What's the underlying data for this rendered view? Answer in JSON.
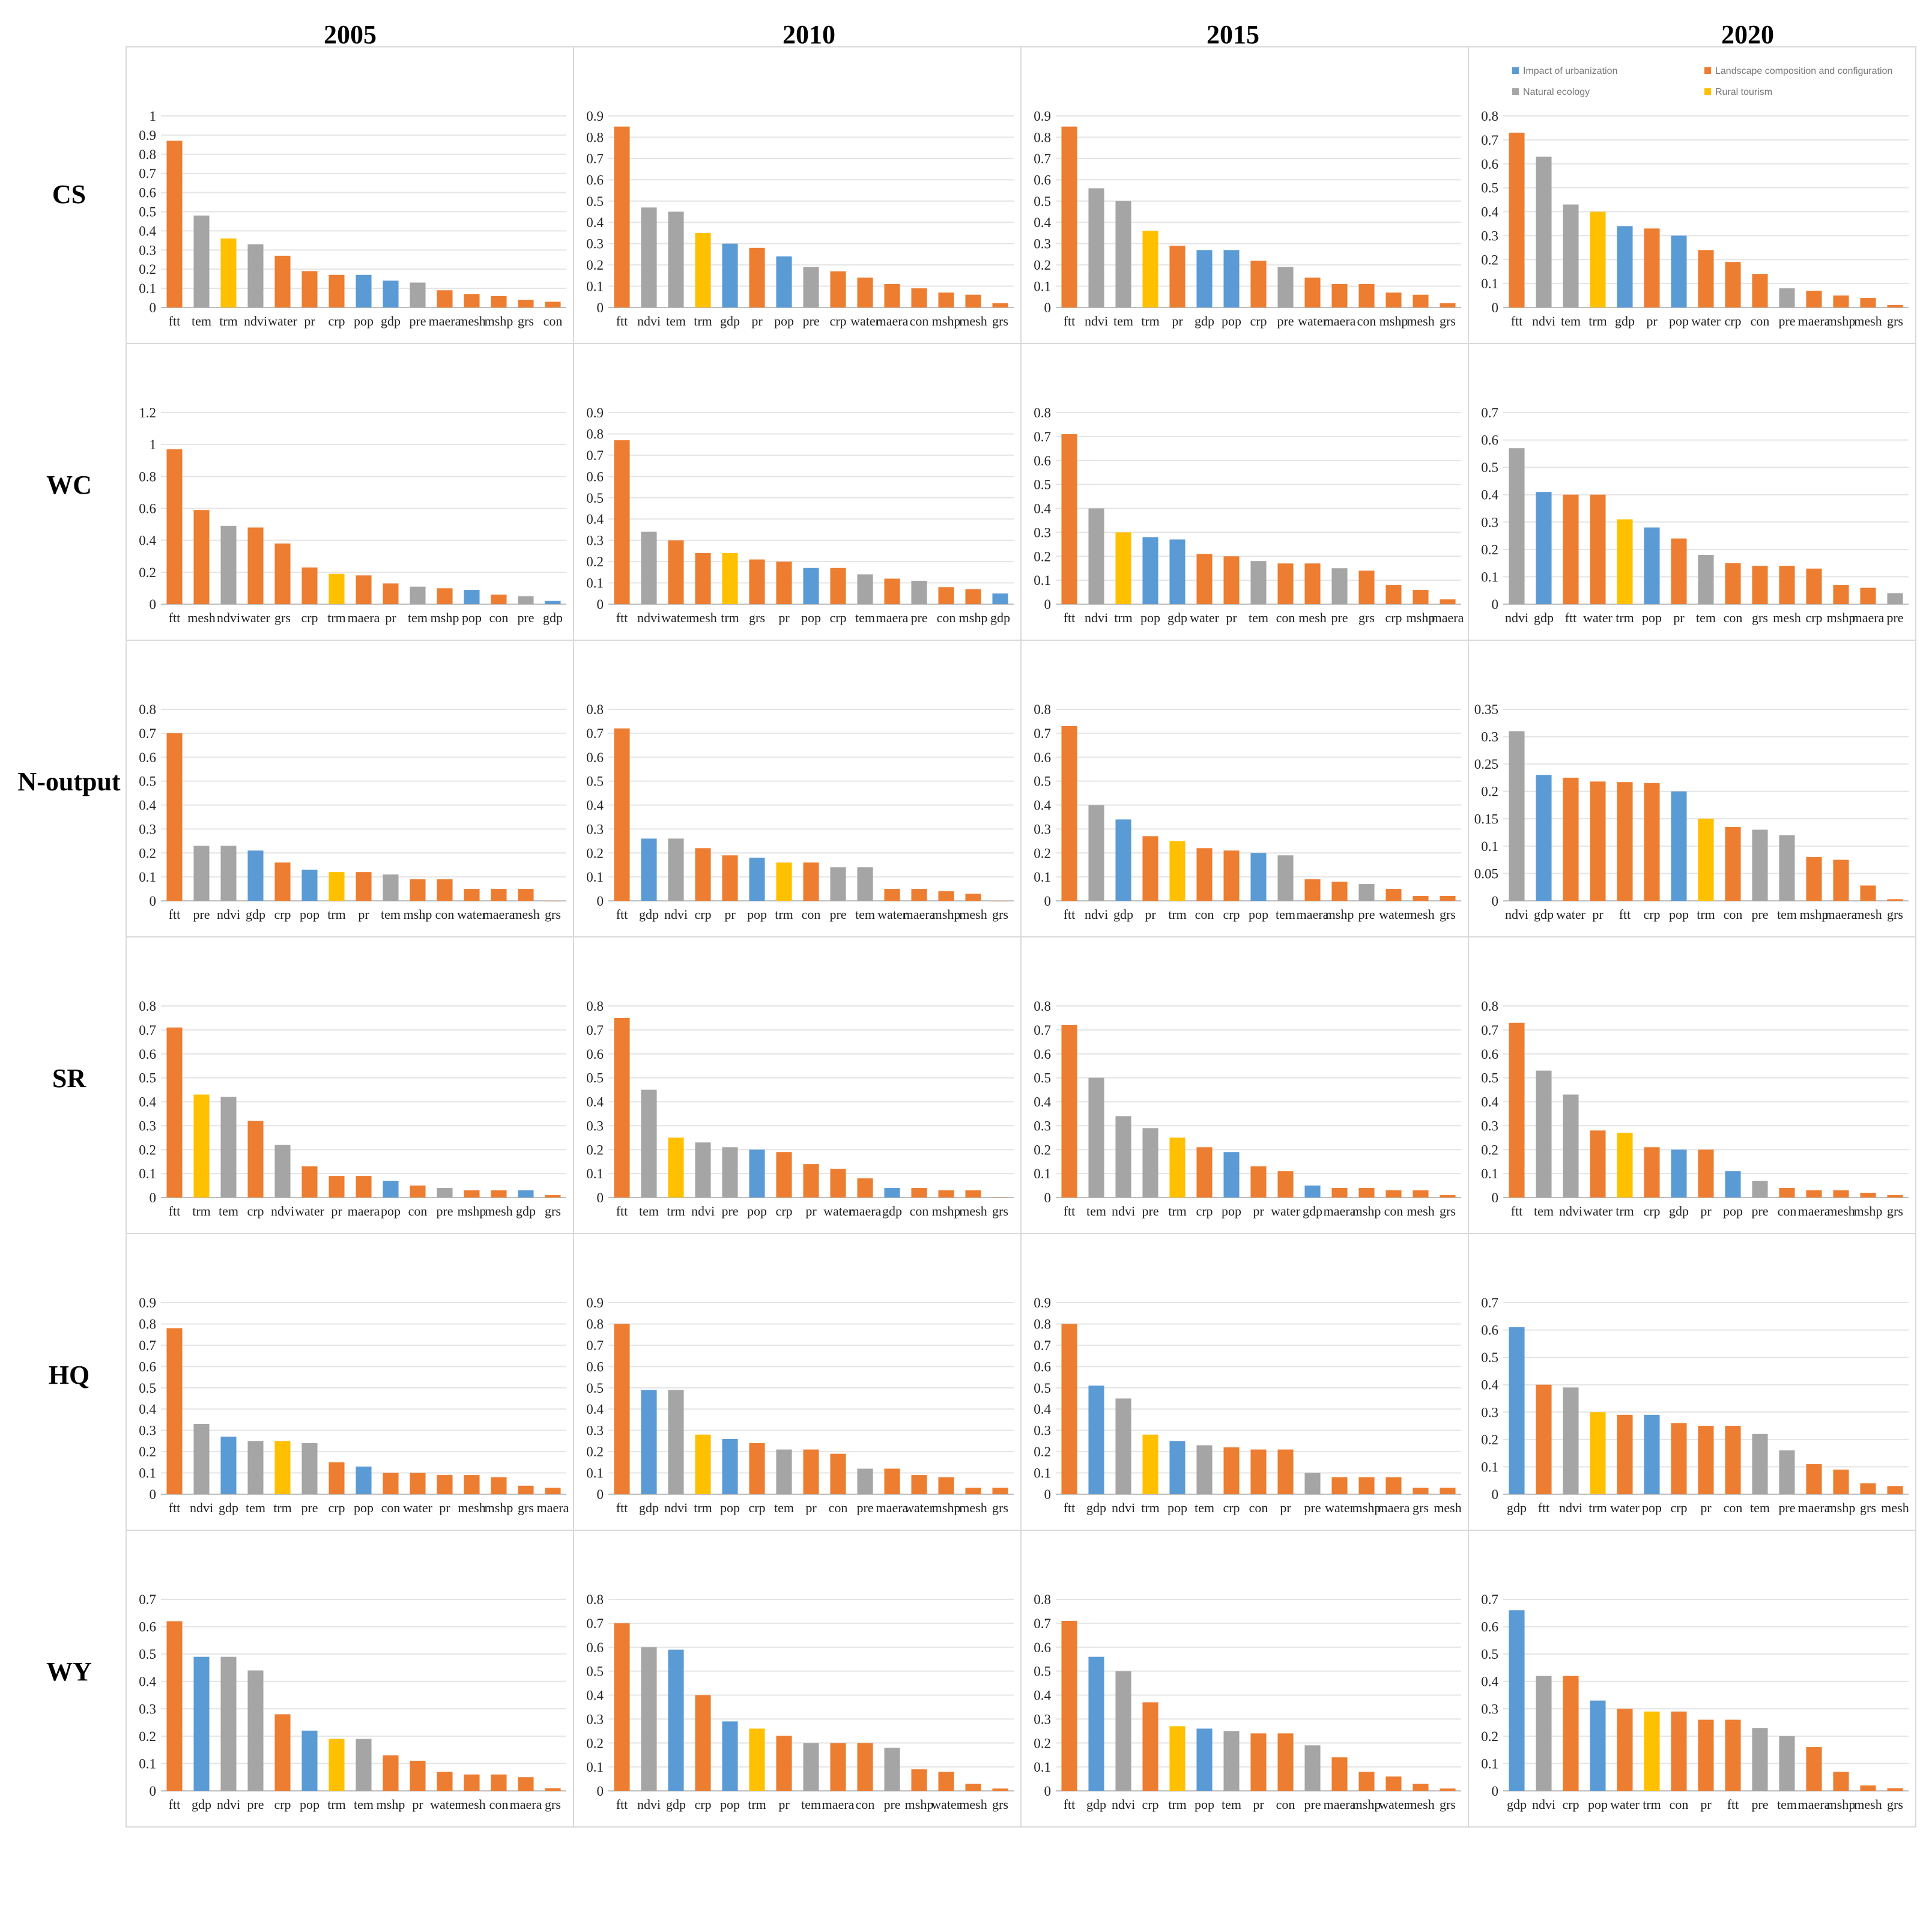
{
  "colors": {
    "Impact of urbanization": "#5b9bd5",
    "Landscape composition and configuration": "#ed7d31",
    "Natural ecology": "#a5a5a5",
    "Rural tourism": "#ffc000"
  },
  "variable_groups": {
    "ftt": "Landscape composition and configuration",
    "mesh": "Landscape composition and configuration",
    "water": "Landscape composition and configuration",
    "grs": "Landscape composition and configuration",
    "crp": "Landscape composition and configuration",
    "maera": "Landscape composition and configuration",
    "pr": "Landscape composition and configuration",
    "con": "Landscape composition and configuration",
    "mshp": "Landscape composition and configuration",
    "tem": "Natural ecology",
    "ndvi": "Natural ecology",
    "pre": "Natural ecology",
    "gdp": "Impact of urbanization",
    "pop": "Impact of urbanization",
    "trm": "Rural tourism"
  },
  "legend": {
    "entries": [
      "Impact of urbanization",
      "Landscape composition and configuration",
      "Natural ecology",
      "Rural tourism"
    ]
  },
  "columns": [
    "2005",
    "2010",
    "2015",
    "2020"
  ],
  "rows": [
    "CS",
    "WC",
    "N-output",
    "SR",
    "HQ",
    "WY"
  ],
  "chart_data": [
    {
      "type": "bar",
      "row": "CS",
      "year": "2005",
      "ylim": [
        0,
        1
      ],
      "yticks": [
        "0",
        "0.1",
        "0.2",
        "0.3",
        "0.4",
        "0.5",
        "0.6",
        "0.7",
        "0.8",
        "0.9",
        "1"
      ],
      "categories": [
        "ftt",
        "tem",
        "trm",
        "ndvi",
        "water",
        "pr",
        "crp",
        "pop",
        "gdp",
        "pre",
        "maera",
        "mesh",
        "mshp",
        "grs",
        "con"
      ],
      "values": [
        0.87,
        0.48,
        0.36,
        0.33,
        0.27,
        0.19,
        0.17,
        0.17,
        0.14,
        0.13,
        0.09,
        0.07,
        0.06,
        0.04,
        0.03
      ]
    },
    {
      "type": "bar",
      "row": "CS",
      "year": "2010",
      "ylim": [
        0,
        0.9
      ],
      "yticks": [
        "0",
        "0.1",
        "0.2",
        "0.3",
        "0.4",
        "0.5",
        "0.6",
        "0.7",
        "0.8",
        "0.9"
      ],
      "categories": [
        "ftt",
        "ndvi",
        "tem",
        "trm",
        "gdp",
        "pr",
        "pop",
        "pre",
        "crp",
        "water",
        "maera",
        "con",
        "mshp",
        "mesh",
        "grs"
      ],
      "values": [
        0.85,
        0.47,
        0.45,
        0.35,
        0.3,
        0.28,
        0.24,
        0.19,
        0.17,
        0.14,
        0.11,
        0.09,
        0.07,
        0.06,
        0.02
      ]
    },
    {
      "type": "bar",
      "row": "CS",
      "year": "2015",
      "ylim": [
        0,
        0.9
      ],
      "yticks": [
        "0",
        "0.1",
        "0.2",
        "0.3",
        "0.4",
        "0.5",
        "0.6",
        "0.7",
        "0.8",
        "0.9"
      ],
      "categories": [
        "ftt",
        "ndvi",
        "tem",
        "trm",
        "pr",
        "gdp",
        "pop",
        "crp",
        "pre",
        "water",
        "maera",
        "con",
        "mshp",
        "mesh",
        "grs"
      ],
      "values": [
        0.85,
        0.56,
        0.5,
        0.36,
        0.29,
        0.27,
        0.27,
        0.22,
        0.19,
        0.14,
        0.11,
        0.11,
        0.07,
        0.06,
        0.02
      ]
    },
    {
      "type": "bar",
      "row": "CS",
      "year": "2020",
      "ylim": [
        0,
        0.8
      ],
      "yticks": [
        "0",
        "0.1",
        "0.2",
        "0.3",
        "0.4",
        "0.5",
        "0.6",
        "0.7",
        "0.8"
      ],
      "categories": [
        "ftt",
        "ndvi",
        "tem",
        "trm",
        "gdp",
        "pr",
        "pop",
        "water",
        "crp",
        "con",
        "pre",
        "maera",
        "mshp",
        "mesh",
        "grs"
      ],
      "values": [
        0.73,
        0.63,
        0.43,
        0.4,
        0.34,
        0.33,
        0.3,
        0.24,
        0.19,
        0.14,
        0.08,
        0.07,
        0.05,
        0.04,
        0.01
      ]
    },
    {
      "type": "bar",
      "row": "WC",
      "year": "2005",
      "ylim": [
        0,
        1.2
      ],
      "yticks": [
        "0",
        "0.2",
        "0.4",
        "0.6",
        "0.8",
        "1",
        "1.2"
      ],
      "categories": [
        "ftt",
        "mesh",
        "ndvi",
        "water",
        "grs",
        "crp",
        "trm",
        "maera",
        "pr",
        "tem",
        "mshp",
        "pop",
        "con",
        "pre",
        "gdp"
      ],
      "values": [
        0.97,
        0.59,
        0.49,
        0.48,
        0.38,
        0.23,
        0.19,
        0.18,
        0.13,
        0.11,
        0.1,
        0.09,
        0.06,
        0.05,
        0.02
      ]
    },
    {
      "type": "bar",
      "row": "WC",
      "year": "2010",
      "ylim": [
        0,
        0.9
      ],
      "yticks": [
        "0",
        "0.1",
        "0.2",
        "0.3",
        "0.4",
        "0.5",
        "0.6",
        "0.7",
        "0.8",
        "0.9"
      ],
      "categories": [
        "ftt",
        "ndvi",
        "water",
        "mesh",
        "trm",
        "grs",
        "pr",
        "pop",
        "crp",
        "tem",
        "maera",
        "pre",
        "con",
        "mshp",
        "gdp"
      ],
      "values": [
        0.77,
        0.34,
        0.3,
        0.24,
        0.24,
        0.21,
        0.2,
        0.17,
        0.17,
        0.14,
        0.12,
        0.11,
        0.08,
        0.07,
        0.05
      ]
    },
    {
      "type": "bar",
      "row": "WC",
      "year": "2015",
      "ylim": [
        0,
        0.8
      ],
      "yticks": [
        "0",
        "0.1",
        "0.2",
        "0.3",
        "0.4",
        "0.5",
        "0.6",
        "0.7",
        "0.8"
      ],
      "categories": [
        "ftt",
        "ndvi",
        "trm",
        "pop",
        "gdp",
        "water",
        "pr",
        "tem",
        "con",
        "mesh",
        "pre",
        "grs",
        "crp",
        "mshp",
        "maera"
      ],
      "values": [
        0.71,
        0.4,
        0.3,
        0.28,
        0.27,
        0.21,
        0.2,
        0.18,
        0.17,
        0.17,
        0.15,
        0.14,
        0.08,
        0.06,
        0.02
      ]
    },
    {
      "type": "bar",
      "row": "WC",
      "year": "2020",
      "ylim": [
        0,
        0.7
      ],
      "yticks": [
        "0",
        "0.1",
        "0.2",
        "0.3",
        "0.4",
        "0.5",
        "0.6",
        "0.7"
      ],
      "categories": [
        "ndvi",
        "gdp",
        "ftt",
        "water",
        "trm",
        "pop",
        "pr",
        "tem",
        "con",
        "grs",
        "mesh",
        "crp",
        "mshp",
        "maera",
        "pre"
      ],
      "values": [
        0.57,
        0.41,
        0.4,
        0.4,
        0.31,
        0.28,
        0.24,
        0.18,
        0.15,
        0.14,
        0.14,
        0.13,
        0.07,
        0.06,
        0.04
      ]
    },
    {
      "type": "bar",
      "row": "N-output",
      "year": "2005",
      "ylim": [
        0,
        0.8
      ],
      "yticks": [
        "0",
        "0.1",
        "0.2",
        "0.3",
        "0.4",
        "0.5",
        "0.6",
        "0.7",
        "0.8"
      ],
      "categories": [
        "ftt",
        "pre",
        "ndvi",
        "gdp",
        "crp",
        "pop",
        "trm",
        "pr",
        "tem",
        "mshp",
        "con",
        "water",
        "maera",
        "mesh",
        "grs"
      ],
      "values": [
        0.7,
        0.23,
        0.23,
        0.21,
        0.16,
        0.13,
        0.12,
        0.12,
        0.11,
        0.09,
        0.09,
        0.05,
        0.05,
        0.05,
        0.0
      ]
    },
    {
      "type": "bar",
      "row": "N-output",
      "year": "2010",
      "ylim": [
        0,
        0.8
      ],
      "yticks": [
        "0",
        "0.1",
        "0.2",
        "0.3",
        "0.4",
        "0.5",
        "0.6",
        "0.7",
        "0.8"
      ],
      "categories": [
        "ftt",
        "gdp",
        "ndvi",
        "crp",
        "pr",
        "pop",
        "trm",
        "con",
        "pre",
        "tem",
        "water",
        "maera",
        "mshp",
        "mesh",
        "grs"
      ],
      "values": [
        0.72,
        0.26,
        0.26,
        0.22,
        0.19,
        0.18,
        0.16,
        0.16,
        0.14,
        0.14,
        0.05,
        0.05,
        0.04,
        0.03,
        0.0
      ]
    },
    {
      "type": "bar",
      "row": "N-output",
      "year": "2015",
      "ylim": [
        0,
        0.8
      ],
      "yticks": [
        "0",
        "0.1",
        "0.2",
        "0.3",
        "0.4",
        "0.5",
        "0.6",
        "0.7",
        "0.8"
      ],
      "categories": [
        "ftt",
        "ndvi",
        "gdp",
        "pr",
        "trm",
        "con",
        "crp",
        "pop",
        "tem",
        "maera",
        "mshp",
        "pre",
        "water",
        "mesh",
        "grs"
      ],
      "values": [
        0.73,
        0.4,
        0.34,
        0.27,
        0.25,
        0.22,
        0.21,
        0.2,
        0.19,
        0.09,
        0.08,
        0.07,
        0.05,
        0.02,
        0.02
      ]
    },
    {
      "type": "bar",
      "row": "N-output",
      "year": "2020",
      "ylim": [
        0,
        0.35
      ],
      "yticks": [
        "0",
        "0.05",
        "0.1",
        "0.15",
        "0.2",
        "0.25",
        "0.3",
        "0.35"
      ],
      "categories": [
        "ndvi",
        "gdp",
        "water",
        "pr",
        "ftt",
        "crp",
        "pop",
        "trm",
        "con",
        "pre",
        "tem",
        "mshp",
        "maera",
        "mesh",
        "grs"
      ],
      "values": [
        0.31,
        0.23,
        0.225,
        0.218,
        0.217,
        0.215,
        0.2,
        0.15,
        0.135,
        0.13,
        0.12,
        0.08,
        0.075,
        0.028,
        0.003
      ]
    },
    {
      "type": "bar",
      "row": "SR",
      "year": "2005",
      "ylim": [
        0,
        0.8
      ],
      "yticks": [
        "0",
        "0.1",
        "0.2",
        "0.3",
        "0.4",
        "0.5",
        "0.6",
        "0.7",
        "0.8"
      ],
      "categories": [
        "ftt",
        "trm",
        "tem",
        "crp",
        "ndvi",
        "water",
        "pr",
        "maera",
        "pop",
        "con",
        "pre",
        "mshp",
        "mesh",
        "gdp",
        "grs"
      ],
      "values": [
        0.71,
        0.43,
        0.42,
        0.32,
        0.22,
        0.13,
        0.09,
        0.09,
        0.07,
        0.05,
        0.04,
        0.03,
        0.03,
        0.03,
        0.01
      ]
    },
    {
      "type": "bar",
      "row": "SR",
      "year": "2010",
      "ylim": [
        0,
        0.8
      ],
      "yticks": [
        "0",
        "0.1",
        "0.2",
        "0.3",
        "0.4",
        "0.5",
        "0.6",
        "0.7",
        "0.8"
      ],
      "categories": [
        "ftt",
        "tem",
        "trm",
        "ndvi",
        "pre",
        "pop",
        "crp",
        "pr",
        "water",
        "maera",
        "gdp",
        "con",
        "mshp",
        "mesh",
        "grs"
      ],
      "values": [
        0.75,
        0.45,
        0.25,
        0.23,
        0.21,
        0.2,
        0.19,
        0.14,
        0.12,
        0.08,
        0.04,
        0.04,
        0.03,
        0.03,
        0.0
      ]
    },
    {
      "type": "bar",
      "row": "SR",
      "year": "2015",
      "ylim": [
        0,
        0.8
      ],
      "yticks": [
        "0",
        "0.1",
        "0.2",
        "0.3",
        "0.4",
        "0.5",
        "0.6",
        "0.7",
        "0.8"
      ],
      "categories": [
        "ftt",
        "tem",
        "ndvi",
        "pre",
        "trm",
        "crp",
        "pop",
        "pr",
        "water",
        "gdp",
        "maera",
        "mshp",
        "con",
        "mesh",
        "grs"
      ],
      "values": [
        0.72,
        0.5,
        0.34,
        0.29,
        0.25,
        0.21,
        0.19,
        0.13,
        0.11,
        0.05,
        0.04,
        0.04,
        0.03,
        0.03,
        0.01
      ]
    },
    {
      "type": "bar",
      "row": "SR",
      "year": "2020",
      "ylim": [
        0,
        0.8
      ],
      "yticks": [
        "0",
        "0.1",
        "0.2",
        "0.3",
        "0.4",
        "0.5",
        "0.6",
        "0.7",
        "0.8"
      ],
      "categories": [
        "ftt",
        "tem",
        "ndvi",
        "water",
        "trm",
        "crp",
        "gdp",
        "pr",
        "pop",
        "pre",
        "con",
        "maera",
        "mesh",
        "mshp",
        "grs"
      ],
      "values": [
        0.73,
        0.53,
        0.43,
        0.28,
        0.27,
        0.21,
        0.2,
        0.2,
        0.11,
        0.07,
        0.04,
        0.03,
        0.03,
        0.02,
        0.01
      ]
    },
    {
      "type": "bar",
      "row": "HQ",
      "year": "2005",
      "ylim": [
        0,
        0.9
      ],
      "yticks": [
        "0",
        "0.1",
        "0.2",
        "0.3",
        "0.4",
        "0.5",
        "0.6",
        "0.7",
        "0.8",
        "0.9"
      ],
      "categories": [
        "ftt",
        "ndvi",
        "gdp",
        "tem",
        "trm",
        "pre",
        "crp",
        "pop",
        "con",
        "water",
        "pr",
        "mesh",
        "mshp",
        "grs",
        "maera"
      ],
      "values": [
        0.78,
        0.33,
        0.27,
        0.25,
        0.25,
        0.24,
        0.15,
        0.13,
        0.1,
        0.1,
        0.09,
        0.09,
        0.08,
        0.04,
        0.03
      ]
    },
    {
      "type": "bar",
      "row": "HQ",
      "year": "2010",
      "ylim": [
        0,
        0.9
      ],
      "yticks": [
        "0",
        "0.1",
        "0.2",
        "0.3",
        "0.4",
        "0.5",
        "0.6",
        "0.7",
        "0.8",
        "0.9"
      ],
      "categories": [
        "ftt",
        "gdp",
        "ndvi",
        "trm",
        "pop",
        "crp",
        "tem",
        "pr",
        "con",
        "pre",
        "maera",
        "water",
        "mshp",
        "mesh",
        "grs"
      ],
      "values": [
        0.8,
        0.49,
        0.49,
        0.28,
        0.26,
        0.24,
        0.21,
        0.21,
        0.19,
        0.12,
        0.12,
        0.09,
        0.08,
        0.03,
        0.03
      ]
    },
    {
      "type": "bar",
      "row": "HQ",
      "year": "2015",
      "ylim": [
        0,
        0.9
      ],
      "yticks": [
        "0",
        "0.1",
        "0.2",
        "0.3",
        "0.4",
        "0.5",
        "0.6",
        "0.7",
        "0.8",
        "0.9"
      ],
      "categories": [
        "ftt",
        "gdp",
        "ndvi",
        "trm",
        "pop",
        "tem",
        "crp",
        "con",
        "pr",
        "pre",
        "water",
        "mshp",
        "maera",
        "grs",
        "mesh"
      ],
      "values": [
        0.8,
        0.51,
        0.45,
        0.28,
        0.25,
        0.23,
        0.22,
        0.21,
        0.21,
        0.1,
        0.08,
        0.08,
        0.08,
        0.03,
        0.03
      ]
    },
    {
      "type": "bar",
      "row": "HQ",
      "year": "2020",
      "ylim": [
        0,
        0.7
      ],
      "yticks": [
        "0",
        "0.1",
        "0.2",
        "0.3",
        "0.4",
        "0.5",
        "0.6",
        "0.7"
      ],
      "categories": [
        "gdp",
        "ftt",
        "ndvi",
        "trm",
        "water",
        "pop",
        "crp",
        "pr",
        "con",
        "tem",
        "pre",
        "maera",
        "mshp",
        "grs",
        "mesh"
      ],
      "values": [
        0.61,
        0.4,
        0.39,
        0.3,
        0.29,
        0.29,
        0.26,
        0.25,
        0.25,
        0.22,
        0.16,
        0.11,
        0.09,
        0.04,
        0.03
      ]
    },
    {
      "type": "bar",
      "row": "WY",
      "year": "2005",
      "ylim": [
        0,
        0.7
      ],
      "yticks": [
        "0",
        "0.1",
        "0.2",
        "0.3",
        "0.4",
        "0.5",
        "0.6",
        "0.7"
      ],
      "categories": [
        "ftt",
        "gdp",
        "ndvi",
        "pre",
        "crp",
        "pop",
        "trm",
        "tem",
        "mshp",
        "pr",
        "water",
        "mesh",
        "con",
        "maera",
        "grs"
      ],
      "values": [
        0.62,
        0.49,
        0.49,
        0.44,
        0.28,
        0.22,
        0.19,
        0.19,
        0.13,
        0.11,
        0.07,
        0.06,
        0.06,
        0.05,
        0.01
      ]
    },
    {
      "type": "bar",
      "row": "WY",
      "year": "2010",
      "ylim": [
        0,
        0.8
      ],
      "yticks": [
        "0",
        "0.1",
        "0.2",
        "0.3",
        "0.4",
        "0.5",
        "0.6",
        "0.7",
        "0.8"
      ],
      "categories": [
        "ftt",
        "ndvi",
        "gdp",
        "crp",
        "pop",
        "trm",
        "pr",
        "tem",
        "maera",
        "con",
        "pre",
        "mshp",
        "water",
        "mesh",
        "grs"
      ],
      "values": [
        0.7,
        0.6,
        0.59,
        0.4,
        0.29,
        0.26,
        0.23,
        0.2,
        0.2,
        0.2,
        0.18,
        0.09,
        0.08,
        0.03,
        0.01
      ]
    },
    {
      "type": "bar",
      "row": "WY",
      "year": "2015",
      "ylim": [
        0,
        0.8
      ],
      "yticks": [
        "0",
        "0.1",
        "0.2",
        "0.3",
        "0.4",
        "0.5",
        "0.6",
        "0.7",
        "0.8"
      ],
      "categories": [
        "ftt",
        "gdp",
        "ndvi",
        "crp",
        "trm",
        "pop",
        "tem",
        "pr",
        "con",
        "pre",
        "maera",
        "mshp",
        "water",
        "mesh",
        "grs"
      ],
      "values": [
        0.71,
        0.56,
        0.5,
        0.37,
        0.27,
        0.26,
        0.25,
        0.24,
        0.24,
        0.19,
        0.14,
        0.08,
        0.06,
        0.03,
        0.01
      ]
    },
    {
      "type": "bar",
      "row": "WY",
      "year": "2020",
      "ylim": [
        0,
        0.7
      ],
      "yticks": [
        "0",
        "0.1",
        "0.2",
        "0.3",
        "0.4",
        "0.5",
        "0.6",
        "0.7"
      ],
      "categories": [
        "gdp",
        "ndvi",
        "crp",
        "pop",
        "water",
        "trm",
        "con",
        "pr",
        "ftt",
        "pre",
        "tem",
        "maera",
        "mshp",
        "mesh",
        "grs"
      ],
      "values": [
        0.66,
        0.42,
        0.42,
        0.33,
        0.3,
        0.29,
        0.29,
        0.26,
        0.26,
        0.23,
        0.2,
        0.16,
        0.07,
        0.02,
        0.01
      ]
    }
  ]
}
